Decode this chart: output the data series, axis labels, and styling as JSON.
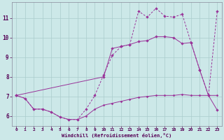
{
  "xlabel": "Windchill (Refroidissement éolien,°C)",
  "bg_color": "#cce8e8",
  "grid_color": "#aacccc",
  "line_color": "#993399",
  "xlim": [
    -0.5,
    23.5
  ],
  "ylim": [
    5.5,
    11.8
  ],
  "yticks": [
    6,
    7,
    8,
    9,
    10,
    11
  ],
  "xticks": [
    0,
    1,
    2,
    3,
    4,
    5,
    6,
    7,
    8,
    9,
    10,
    11,
    12,
    13,
    14,
    15,
    16,
    17,
    18,
    19,
    20,
    21,
    22,
    23
  ],
  "line1_x": [
    0,
    1,
    2,
    3,
    4,
    5,
    6,
    7,
    8,
    9,
    10,
    11,
    12,
    13,
    14,
    15,
    16,
    17,
    18,
    19,
    20,
    21,
    22,
    23
  ],
  "line1_y": [
    7.05,
    6.9,
    6.35,
    6.35,
    6.2,
    5.95,
    5.82,
    5.82,
    6.0,
    6.35,
    6.55,
    6.65,
    6.75,
    6.85,
    6.95,
    7.0,
    7.05,
    7.05,
    7.05,
    7.1,
    7.05,
    7.05,
    7.05,
    7.05
  ],
  "line2_x": [
    0,
    10,
    11,
    12,
    13,
    14,
    15,
    16,
    17,
    18,
    19,
    20,
    21,
    22,
    23
  ],
  "line2_y": [
    7.05,
    8.0,
    9.45,
    9.55,
    9.65,
    9.8,
    9.85,
    10.05,
    10.05,
    10.0,
    9.7,
    9.75,
    8.35,
    7.05,
    6.3
  ],
  "line3_x": [
    0,
    1,
    2,
    3,
    4,
    5,
    6,
    7,
    8,
    9,
    10,
    11,
    12,
    13,
    14,
    15,
    16,
    17,
    18,
    19,
    20,
    21,
    22,
    23
  ],
  "line3_y": [
    7.05,
    6.9,
    6.35,
    6.35,
    6.2,
    5.95,
    5.82,
    5.82,
    6.35,
    7.05,
    8.1,
    9.1,
    9.55,
    9.65,
    11.35,
    11.05,
    11.5,
    11.1,
    11.05,
    11.2,
    9.75,
    8.35,
    7.05,
    11.35
  ],
  "marker": "D",
  "ms1": 1.8,
  "ms2": 2.2,
  "ms3": 2.2
}
